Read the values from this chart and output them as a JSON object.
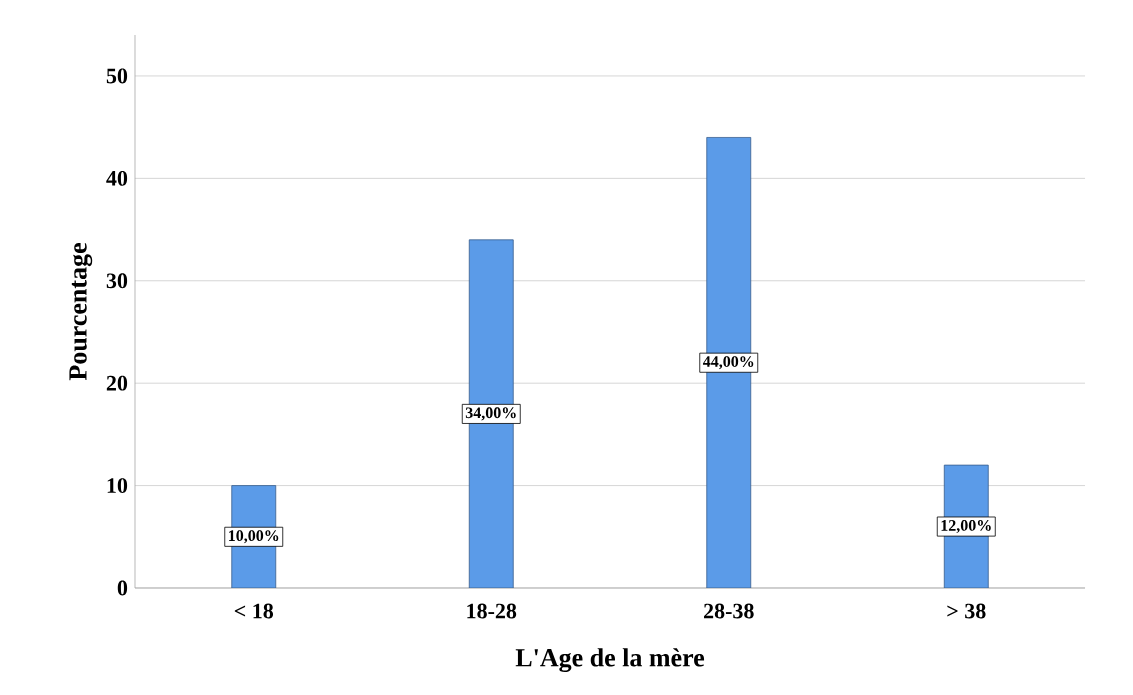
{
  "chart_data": {
    "type": "bar",
    "xlabel": "L'Age de la mère",
    "ylabel": "Pourcentage",
    "categories": [
      "< 18",
      "18-28",
      "28-38",
      "> 38"
    ],
    "values": [
      10,
      34,
      44,
      12
    ],
    "value_labels": [
      "10,00%",
      "34,00%",
      "44,00%",
      "12,00%"
    ],
    "color": "#5b9be8",
    "ylim": [
      0,
      54
    ],
    "yticks": [
      0,
      10,
      20,
      30,
      40,
      50
    ],
    "grid": "y"
  }
}
